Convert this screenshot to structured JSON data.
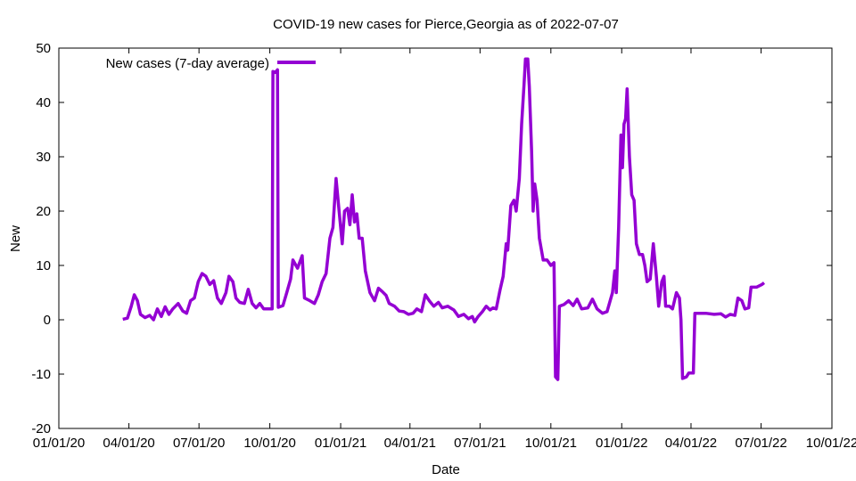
{
  "chart_data": {
    "type": "line",
    "title": "COVID-19 new cases for Pierce,Georgia as of 2022-07-07",
    "xlabel": "Date",
    "ylabel": "New",
    "xlim": [
      "2020-01-01",
      "2022-10-01"
    ],
    "ylim": [
      -20,
      50
    ],
    "x_ticks": [
      "01/01/20",
      "04/01/20",
      "07/01/20",
      "10/01/20",
      "01/01/21",
      "04/01/21",
      "07/01/21",
      "10/01/21",
      "01/01/22",
      "04/01/22",
      "07/01/22",
      "10/01/22"
    ],
    "x_tick_dates": [
      "2020-01-01",
      "2020-04-01",
      "2020-07-01",
      "2020-10-01",
      "2021-01-01",
      "2021-04-01",
      "2021-07-01",
      "2021-10-01",
      "2022-01-01",
      "2022-04-01",
      "2022-07-01",
      "2022-10-01"
    ],
    "y_ticks": [
      -20,
      -10,
      0,
      10,
      20,
      30,
      40,
      50
    ],
    "grid": false,
    "legend_position": "top-left",
    "series": [
      {
        "name": "New cases (7-day average)",
        "color": "#9400d3",
        "points": [
          [
            "2020-03-24",
            0.1
          ],
          [
            "2020-03-30",
            0.3
          ],
          [
            "2020-04-04",
            2.5
          ],
          [
            "2020-04-08",
            4.6
          ],
          [
            "2020-04-12",
            3.5
          ],
          [
            "2020-04-16",
            1.0
          ],
          [
            "2020-04-22",
            0.4
          ],
          [
            "2020-04-28",
            0.8
          ],
          [
            "2020-05-03",
            0.0
          ],
          [
            "2020-05-08",
            2.0
          ],
          [
            "2020-05-13",
            0.6
          ],
          [
            "2020-05-18",
            2.4
          ],
          [
            "2020-05-23",
            1.0
          ],
          [
            "2020-05-28",
            2.0
          ],
          [
            "2020-06-04",
            3.0
          ],
          [
            "2020-06-10",
            1.6
          ],
          [
            "2020-06-15",
            1.2
          ],
          [
            "2020-06-20",
            3.5
          ],
          [
            "2020-06-25",
            4.0
          ],
          [
            "2020-06-30",
            7.0
          ],
          [
            "2020-07-05",
            8.5
          ],
          [
            "2020-07-10",
            8.0
          ],
          [
            "2020-07-15",
            6.5
          ],
          [
            "2020-07-20",
            7.2
          ],
          [
            "2020-07-25",
            4.0
          ],
          [
            "2020-07-30",
            3.0
          ],
          [
            "2020-08-05",
            5.0
          ],
          [
            "2020-08-09",
            8.0
          ],
          [
            "2020-08-14",
            7.0
          ],
          [
            "2020-08-18",
            4.0
          ],
          [
            "2020-08-23",
            3.2
          ],
          [
            "2020-08-29",
            3.0
          ],
          [
            "2020-09-03",
            5.6
          ],
          [
            "2020-09-08",
            3.0
          ],
          [
            "2020-09-13",
            2.2
          ],
          [
            "2020-09-18",
            3.0
          ],
          [
            "2020-09-23",
            2.0
          ],
          [
            "2020-10-04",
            2.0
          ],
          [
            "2020-10-05",
            45.7
          ],
          [
            "2020-10-08",
            45.5
          ],
          [
            "2020-10-11",
            46.0
          ],
          [
            "2020-10-12",
            2.3
          ],
          [
            "2020-10-18",
            2.6
          ],
          [
            "2020-10-23",
            5.0
          ],
          [
            "2020-10-28",
            7.5
          ],
          [
            "2020-10-31",
            11.0
          ],
          [
            "2020-11-06",
            9.5
          ],
          [
            "2020-11-12",
            11.8
          ],
          [
            "2020-11-15",
            4.0
          ],
          [
            "2020-11-22",
            3.5
          ],
          [
            "2020-11-28",
            3.0
          ],
          [
            "2020-12-03",
            4.6
          ],
          [
            "2020-12-08",
            7.0
          ],
          [
            "2020-12-13",
            8.5
          ],
          [
            "2020-12-18",
            15.0
          ],
          [
            "2020-12-22",
            17.0
          ],
          [
            "2020-12-26",
            26.0
          ],
          [
            "2020-12-30",
            20.0
          ],
          [
            "2021-01-03",
            14.0
          ],
          [
            "2021-01-06",
            20.0
          ],
          [
            "2021-01-10",
            20.5
          ],
          [
            "2021-01-13",
            17.5
          ],
          [
            "2021-01-16",
            23.0
          ],
          [
            "2021-01-19",
            18.0
          ],
          [
            "2021-01-22",
            19.5
          ],
          [
            "2021-01-25",
            15.0
          ],
          [
            "2021-01-29",
            15.0
          ],
          [
            "2021-02-02",
            9.0
          ],
          [
            "2021-02-08",
            5.0
          ],
          [
            "2021-02-14",
            3.5
          ],
          [
            "2021-02-19",
            5.8
          ],
          [
            "2021-02-24",
            5.2
          ],
          [
            "2021-03-01",
            4.5
          ],
          [
            "2021-03-05",
            3.0
          ],
          [
            "2021-03-12",
            2.5
          ],
          [
            "2021-03-18",
            1.6
          ],
          [
            "2021-03-24",
            1.5
          ],
          [
            "2021-03-30",
            1.0
          ],
          [
            "2021-04-05",
            1.2
          ],
          [
            "2021-04-10",
            2.0
          ],
          [
            "2021-04-16",
            1.5
          ],
          [
            "2021-04-21",
            4.6
          ],
          [
            "2021-04-26",
            3.5
          ],
          [
            "2021-05-02",
            2.5
          ],
          [
            "2021-05-08",
            3.2
          ],
          [
            "2021-05-13",
            2.2
          ],
          [
            "2021-05-20",
            2.5
          ],
          [
            "2021-05-28",
            1.8
          ],
          [
            "2021-06-03",
            0.6
          ],
          [
            "2021-06-10",
            1.0
          ],
          [
            "2021-06-16",
            0.2
          ],
          [
            "2021-06-21",
            0.6
          ],
          [
            "2021-06-24",
            -0.4
          ],
          [
            "2021-06-28",
            0.5
          ],
          [
            "2021-07-04",
            1.5
          ],
          [
            "2021-07-09",
            2.5
          ],
          [
            "2021-07-14",
            1.8
          ],
          [
            "2021-07-18",
            2.2
          ],
          [
            "2021-07-22",
            2.0
          ],
          [
            "2021-07-27",
            5.5
          ],
          [
            "2021-07-31",
            8.0
          ],
          [
            "2021-08-04",
            14.0
          ],
          [
            "2021-08-06",
            12.8
          ],
          [
            "2021-08-10",
            21.0
          ],
          [
            "2021-08-14",
            22.0
          ],
          [
            "2021-08-17",
            20.0
          ],
          [
            "2021-08-21",
            26.0
          ],
          [
            "2021-08-24",
            36.0
          ],
          [
            "2021-08-27",
            43.0
          ],
          [
            "2021-08-29",
            48.0
          ],
          [
            "2021-09-01",
            48.0
          ],
          [
            "2021-09-03",
            43.0
          ],
          [
            "2021-09-06",
            31.0
          ],
          [
            "2021-09-08",
            20.0
          ],
          [
            "2021-09-10",
            25.0
          ],
          [
            "2021-09-13",
            22.0
          ],
          [
            "2021-09-16",
            15.0
          ],
          [
            "2021-09-21",
            11.0
          ],
          [
            "2021-09-26",
            11.0
          ],
          [
            "2021-10-01",
            10.0
          ],
          [
            "2021-10-05",
            10.5
          ],
          [
            "2021-10-07",
            -10.5
          ],
          [
            "2021-10-10",
            -11.0
          ],
          [
            "2021-10-12",
            2.5
          ],
          [
            "2021-10-18",
            2.8
          ],
          [
            "2021-10-24",
            3.5
          ],
          [
            "2021-10-30",
            2.6
          ],
          [
            "2021-11-04",
            3.8
          ],
          [
            "2021-11-10",
            2.0
          ],
          [
            "2021-11-18",
            2.2
          ],
          [
            "2021-11-24",
            3.8
          ],
          [
            "2021-11-30",
            2.0
          ],
          [
            "2021-12-07",
            1.2
          ],
          [
            "2021-12-13",
            1.5
          ],
          [
            "2021-12-17",
            3.5
          ],
          [
            "2021-12-20",
            5.0
          ],
          [
            "2021-12-23",
            9.0
          ],
          [
            "2021-12-25",
            5.0
          ],
          [
            "2021-12-28",
            17.0
          ],
          [
            "2021-12-31",
            34.0
          ],
          [
            "2022-01-02",
            28.0
          ],
          [
            "2022-01-04",
            36.0
          ],
          [
            "2022-01-06",
            37.0
          ],
          [
            "2022-01-08",
            42.5
          ],
          [
            "2022-01-11",
            30.0
          ],
          [
            "2022-01-14",
            23.0
          ],
          [
            "2022-01-17",
            22.0
          ],
          [
            "2022-01-20",
            14.0
          ],
          [
            "2022-01-24",
            12.0
          ],
          [
            "2022-01-28",
            12.0
          ],
          [
            "2022-01-31",
            10.0
          ],
          [
            "2022-02-03",
            7.0
          ],
          [
            "2022-02-07",
            7.5
          ],
          [
            "2022-02-11",
            14.0
          ],
          [
            "2022-02-15",
            8.0
          ],
          [
            "2022-02-18",
            2.5
          ],
          [
            "2022-02-22",
            7.0
          ],
          [
            "2022-02-25",
            8.0
          ],
          [
            "2022-02-27",
            2.5
          ],
          [
            "2022-03-04",
            2.5
          ],
          [
            "2022-03-08",
            2.0
          ],
          [
            "2022-03-13",
            5.0
          ],
          [
            "2022-03-17",
            4.0
          ],
          [
            "2022-03-19",
            0.0
          ],
          [
            "2022-03-21",
            -10.8
          ],
          [
            "2022-03-26",
            -10.5
          ],
          [
            "2022-03-29",
            -9.8
          ],
          [
            "2022-04-04",
            -9.8
          ],
          [
            "2022-04-06",
            1.2
          ],
          [
            "2022-04-20",
            1.2
          ],
          [
            "2022-05-01",
            1.0
          ],
          [
            "2022-05-10",
            1.1
          ],
          [
            "2022-05-16",
            0.5
          ],
          [
            "2022-05-22",
            1.0
          ],
          [
            "2022-05-28",
            0.8
          ],
          [
            "2022-06-01",
            4.0
          ],
          [
            "2022-06-06",
            3.5
          ],
          [
            "2022-06-10",
            2.0
          ],
          [
            "2022-06-15",
            2.2
          ],
          [
            "2022-06-18",
            6.0
          ],
          [
            "2022-06-25",
            6.0
          ],
          [
            "2022-07-02",
            6.5
          ],
          [
            "2022-07-05",
            6.8
          ]
        ]
      }
    ]
  }
}
